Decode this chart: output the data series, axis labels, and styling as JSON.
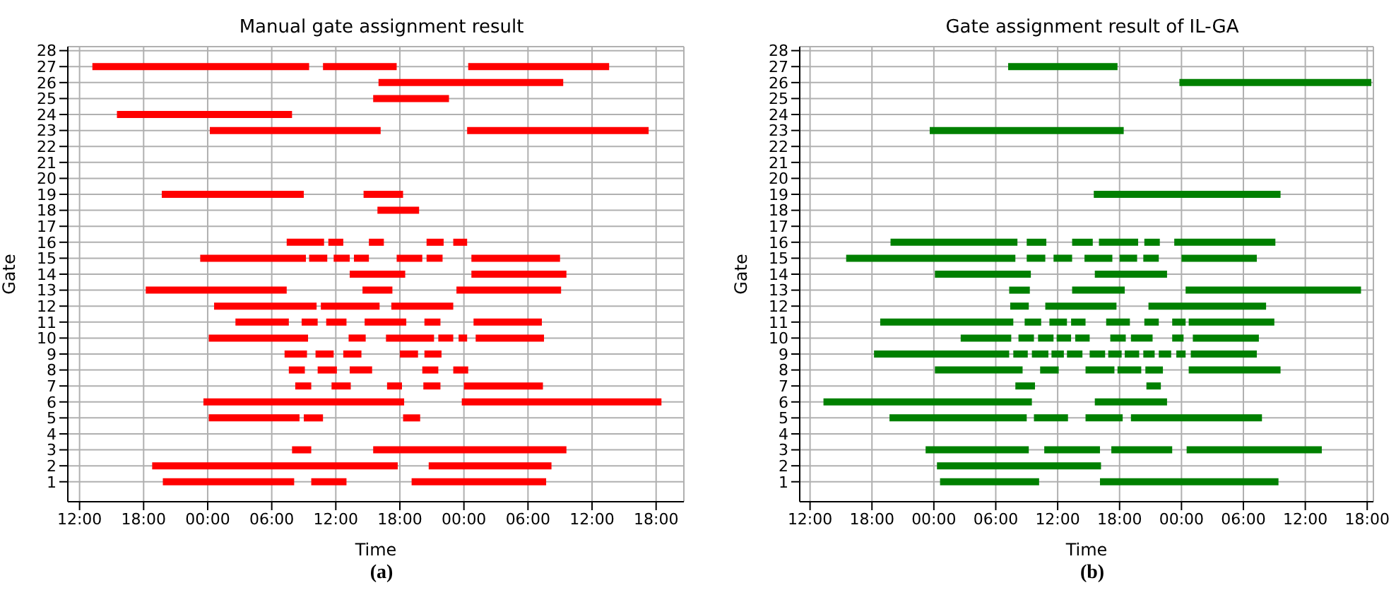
{
  "chart_data": [
    {
      "type": "line",
      "title": "Manual gate assignment result",
      "xlabel": "Time",
      "ylabel": "Gate",
      "annotations": [
        "(a)"
      ],
      "grid": true,
      "color": "#ff0000",
      "xlim": [
        "--01-01T10:54",
        "--01-03T20:36"
      ],
      "ylim": [
        -0.25,
        28.25
      ],
      "xticks": [
        {
          "value": "--01-01T12:00",
          "label": "12:00"
        },
        {
          "value": "--01-01T18:00",
          "label": "18:00"
        },
        {
          "value": "--01-02T00:00",
          "label": "00:00"
        },
        {
          "value": "--01-02T06:00",
          "label": "06:00"
        },
        {
          "value": "--01-02T12:00",
          "label": "12:00"
        },
        {
          "value": "--01-02T18:00",
          "label": "18:00"
        },
        {
          "value": "--01-03T00:00",
          "label": "00:00"
        },
        {
          "value": "--01-03T06:00",
          "label": "06:00"
        },
        {
          "value": "--01-03T12:00",
          "label": "12:00"
        },
        {
          "value": "--01-03T18:00",
          "label": "18:00"
        }
      ],
      "yticks": [
        1,
        2,
        3,
        4,
        5,
        6,
        7,
        8,
        9,
        10,
        11,
        12,
        13,
        14,
        15,
        16,
        17,
        18,
        19,
        20,
        21,
        22,
        23,
        24,
        25,
        26,
        27,
        28
      ],
      "series": [
        {
          "x": [
            "--01-01T13:12",
            "--01-02T09:30"
          ],
          "values": [
            27,
            27
          ]
        },
        {
          "x": [
            "--01-02T10:48",
            "--01-02T17:42"
          ],
          "values": [
            27,
            27
          ]
        },
        {
          "x": [
            "--01-03T00:24",
            "--01-03T13:36"
          ],
          "values": [
            27,
            27
          ]
        },
        {
          "x": [
            "--01-02T16:00",
            "--01-03T09:18"
          ],
          "values": [
            26,
            26
          ]
        },
        {
          "x": [
            "--01-02T15:30",
            "--01-02T22:36"
          ],
          "values": [
            25,
            25
          ]
        },
        {
          "x": [
            "--01-01T15:30",
            "--01-02T07:54"
          ],
          "values": [
            24,
            24
          ]
        },
        {
          "x": [
            "--01-02T00:12",
            "--01-02T16:12"
          ],
          "values": [
            23,
            23
          ]
        },
        {
          "x": [
            "--01-03T00:18",
            "--01-03T17:18"
          ],
          "values": [
            23,
            23
          ]
        },
        {
          "x": [
            "--01-01T19:42",
            "--01-02T09:00"
          ],
          "values": [
            19,
            19
          ]
        },
        {
          "x": [
            "--01-02T14:36",
            "--01-02T18:18"
          ],
          "values": [
            19,
            19
          ]
        },
        {
          "x": [
            "--01-02T15:54",
            "--01-02T19:48"
          ],
          "values": [
            18,
            18
          ]
        },
        {
          "x": [
            "--01-02T07:24",
            "--01-02T10:54"
          ],
          "values": [
            16,
            16
          ]
        },
        {
          "x": [
            "--01-02T11:18",
            "--01-02T12:42"
          ],
          "values": [
            16,
            16
          ]
        },
        {
          "x": [
            "--01-02T15:06",
            "--01-02T16:30"
          ],
          "values": [
            16,
            16
          ]
        },
        {
          "x": [
            "--01-02T20:30",
            "--01-02T22:06"
          ],
          "values": [
            16,
            16
          ]
        },
        {
          "x": [
            "--01-02T23:00",
            "--01-03T00:18"
          ],
          "values": [
            16,
            16
          ]
        },
        {
          "x": [
            "--01-01T23:18",
            "--01-02T09:12"
          ],
          "values": [
            15,
            15
          ]
        },
        {
          "x": [
            "--01-02T09:30",
            "--01-02T11:12"
          ],
          "values": [
            15,
            15
          ]
        },
        {
          "x": [
            "--01-02T11:48",
            "--01-02T13:18"
          ],
          "values": [
            15,
            15
          ]
        },
        {
          "x": [
            "--01-02T13:42",
            "--01-02T15:06"
          ],
          "values": [
            15,
            15
          ]
        },
        {
          "x": [
            "--01-02T17:42",
            "--01-02T20:06"
          ],
          "values": [
            15,
            15
          ]
        },
        {
          "x": [
            "--01-02T20:30",
            "--01-02T22:00"
          ],
          "values": [
            15,
            15
          ]
        },
        {
          "x": [
            "--01-03T00:42",
            "--01-03T09:00"
          ],
          "values": [
            15,
            15
          ]
        },
        {
          "x": [
            "--01-02T13:18",
            "--01-02T18:30"
          ],
          "values": [
            14,
            14
          ]
        },
        {
          "x": [
            "--01-03T00:42",
            "--01-03T09:36"
          ],
          "values": [
            14,
            14
          ]
        },
        {
          "x": [
            "--01-01T18:12",
            "--01-02T07:24"
          ],
          "values": [
            13,
            13
          ]
        },
        {
          "x": [
            "--01-02T14:30",
            "--01-02T17:18"
          ],
          "values": [
            13,
            13
          ]
        },
        {
          "x": [
            "--01-02T23:18",
            "--01-03T09:06"
          ],
          "values": [
            13,
            13
          ]
        },
        {
          "x": [
            "--01-02T00:36",
            "--01-02T10:12"
          ],
          "values": [
            12,
            12
          ]
        },
        {
          "x": [
            "--01-02T10:36",
            "--01-02T16:06"
          ],
          "values": [
            12,
            12
          ]
        },
        {
          "x": [
            "--01-02T17:12",
            "--01-02T23:00"
          ],
          "values": [
            12,
            12
          ]
        },
        {
          "x": [
            "--01-02T02:36",
            "--01-02T07:36"
          ],
          "values": [
            11,
            11
          ]
        },
        {
          "x": [
            "--01-02T08:48",
            "--01-02T10:18"
          ],
          "values": [
            11,
            11
          ]
        },
        {
          "x": [
            "--01-02T11:06",
            "--01-02T13:00"
          ],
          "values": [
            11,
            11
          ]
        },
        {
          "x": [
            "--01-02T14:42",
            "--01-02T18:36"
          ],
          "values": [
            11,
            11
          ]
        },
        {
          "x": [
            "--01-02T20:18",
            "--01-02T21:48"
          ],
          "values": [
            11,
            11
          ]
        },
        {
          "x": [
            "--01-03T00:54",
            "--01-03T07:18"
          ],
          "values": [
            11,
            11
          ]
        },
        {
          "x": [
            "--01-02T00:06",
            "--01-02T09:24"
          ],
          "values": [
            10,
            10
          ]
        },
        {
          "x": [
            "--01-02T13:12",
            "--01-02T14:48"
          ],
          "values": [
            10,
            10
          ]
        },
        {
          "x": [
            "--01-02T16:42",
            "--01-02T21:12"
          ],
          "values": [
            10,
            10
          ]
        },
        {
          "x": [
            "--01-02T21:36",
            "--01-02T23:00"
          ],
          "values": [
            10,
            10
          ]
        },
        {
          "x": [
            "--01-02T23:30",
            "--01-03T00:18"
          ],
          "values": [
            10,
            10
          ]
        },
        {
          "x": [
            "--01-03T01:06",
            "--01-03T07:30"
          ],
          "values": [
            10,
            10
          ]
        },
        {
          "x": [
            "--01-02T07:12",
            "--01-02T09:18"
          ],
          "values": [
            9,
            9
          ]
        },
        {
          "x": [
            "--01-02T10:06",
            "--01-02T11:48"
          ],
          "values": [
            9,
            9
          ]
        },
        {
          "x": [
            "--01-02T12:42",
            "--01-02T14:24"
          ],
          "values": [
            9,
            9
          ]
        },
        {
          "x": [
            "--01-02T18:00",
            "--01-02T19:42"
          ],
          "values": [
            9,
            9
          ]
        },
        {
          "x": [
            "--01-02T20:18",
            "--01-02T21:54"
          ],
          "values": [
            9,
            9
          ]
        },
        {
          "x": [
            "--01-02T07:36",
            "--01-02T09:06"
          ],
          "values": [
            8,
            8
          ]
        },
        {
          "x": [
            "--01-02T10:18",
            "--01-02T12:06"
          ],
          "values": [
            8,
            8
          ]
        },
        {
          "x": [
            "--01-02T13:18",
            "--01-02T15:24"
          ],
          "values": [
            8,
            8
          ]
        },
        {
          "x": [
            "--01-02T20:06",
            "--01-02T21:36"
          ],
          "values": [
            8,
            8
          ]
        },
        {
          "x": [
            "--01-02T23:00",
            "--01-03T00:24"
          ],
          "values": [
            8,
            8
          ]
        },
        {
          "x": [
            "--01-02T08:12",
            "--01-02T09:42"
          ],
          "values": [
            7,
            7
          ]
        },
        {
          "x": [
            "--01-02T11:36",
            "--01-02T13:24"
          ],
          "values": [
            7,
            7
          ]
        },
        {
          "x": [
            "--01-02T16:48",
            "--01-02T18:12"
          ],
          "values": [
            7,
            7
          ]
        },
        {
          "x": [
            "--01-02T20:12",
            "--01-02T21:48"
          ],
          "values": [
            7,
            7
          ]
        },
        {
          "x": [
            "--01-03T00:00",
            "--01-03T07:24"
          ],
          "values": [
            7,
            7
          ]
        },
        {
          "x": [
            "--01-01T23:36",
            "--01-02T18:24"
          ],
          "values": [
            6,
            6
          ]
        },
        {
          "x": [
            "--01-02T23:48",
            "--01-03T18:30"
          ],
          "values": [
            6,
            6
          ]
        },
        {
          "x": [
            "--01-02T00:06",
            "--01-02T08:36"
          ],
          "values": [
            5,
            5
          ]
        },
        {
          "x": [
            "--01-02T09:00",
            "--01-02T10:48"
          ],
          "values": [
            5,
            5
          ]
        },
        {
          "x": [
            "--01-02T18:18",
            "--01-02T19:54"
          ],
          "values": [
            5,
            5
          ]
        },
        {
          "x": [
            "--01-02T07:54",
            "--01-02T09:42"
          ],
          "values": [
            3,
            3
          ]
        },
        {
          "x": [
            "--01-02T15:30",
            "--01-03T09:36"
          ],
          "values": [
            3,
            3
          ]
        },
        {
          "x": [
            "--01-01T18:48",
            "--01-02T17:48"
          ],
          "values": [
            2,
            2
          ]
        },
        {
          "x": [
            "--01-02T20:42",
            "--01-03T08:12"
          ],
          "values": [
            2,
            2
          ]
        },
        {
          "x": [
            "--01-01T19:48",
            "--01-02T08:06"
          ],
          "values": [
            1,
            1
          ]
        },
        {
          "x": [
            "--01-02T09:42",
            "--01-02T13:00"
          ],
          "values": [
            1,
            1
          ]
        },
        {
          "x": [
            "--01-02T19:06",
            "--01-03T07:42"
          ],
          "values": [
            1,
            1
          ]
        }
      ]
    },
    {
      "type": "line",
      "title": "Gate assignment result of IL-GA",
      "xlabel": "Time",
      "ylabel": "Gate",
      "annotations": [
        "(b)"
      ],
      "grid": true,
      "color": "#008000",
      "xlim": [
        "--01-01T11:00",
        "--01-03T18:36"
      ],
      "ylim": [
        -0.25,
        28.25
      ],
      "xticks": [
        {
          "value": "--01-01T12:00",
          "label": "12:00"
        },
        {
          "value": "--01-01T18:00",
          "label": "18:00"
        },
        {
          "value": "--01-02T00:00",
          "label": "00:00"
        },
        {
          "value": "--01-02T06:00",
          "label": "06:00"
        },
        {
          "value": "--01-02T12:00",
          "label": "12:00"
        },
        {
          "value": "--01-02T18:00",
          "label": "18:00"
        },
        {
          "value": "--01-03T00:00",
          "label": "00:00"
        },
        {
          "value": "--01-03T06:00",
          "label": "06:00"
        },
        {
          "value": "--01-03T12:00",
          "label": "12:00"
        },
        {
          "value": "--01-03T18:00",
          "label": "18:00"
        }
      ],
      "yticks": [
        1,
        2,
        3,
        4,
        5,
        6,
        7,
        8,
        9,
        10,
        11,
        12,
        13,
        14,
        15,
        16,
        17,
        18,
        19,
        20,
        21,
        22,
        23,
        24,
        25,
        26,
        27,
        28
      ],
      "series": [
        {
          "x": [
            "--01-02T07:12",
            "--01-02T17:48"
          ],
          "values": [
            27,
            27
          ]
        },
        {
          "x": [
            "--01-02T23:48",
            "--01-03T18:24"
          ],
          "values": [
            26,
            26
          ]
        },
        {
          "x": [
            "--01-01T23:36",
            "--01-02T18:24"
          ],
          "values": [
            23,
            23
          ]
        },
        {
          "x": [
            "--01-02T15:30",
            "--01-03T09:36"
          ],
          "values": [
            19,
            19
          ]
        },
        {
          "x": [
            "--01-01T19:48",
            "--01-02T08:06"
          ],
          "values": [
            16,
            16
          ]
        },
        {
          "x": [
            "--01-02T09:00",
            "--01-02T10:54"
          ],
          "values": [
            16,
            16
          ]
        },
        {
          "x": [
            "--01-02T13:24",
            "--01-02T15:24"
          ],
          "values": [
            16,
            16
          ]
        },
        {
          "x": [
            "--01-02T16:00",
            "--01-02T19:48"
          ],
          "values": [
            16,
            16
          ]
        },
        {
          "x": [
            "--01-02T20:24",
            "--01-02T21:54"
          ],
          "values": [
            16,
            16
          ]
        },
        {
          "x": [
            "--01-02T23:18",
            "--01-03T09:06"
          ],
          "values": [
            16,
            16
          ]
        },
        {
          "x": [
            "--01-01T15:30",
            "--01-02T07:54"
          ],
          "values": [
            15,
            15
          ]
        },
        {
          "x": [
            "--01-02T09:00",
            "--01-02T10:48"
          ],
          "values": [
            15,
            15
          ]
        },
        {
          "x": [
            "--01-02T11:36",
            "--01-02T13:24"
          ],
          "values": [
            15,
            15
          ]
        },
        {
          "x": [
            "--01-02T14:36",
            "--01-02T17:18"
          ],
          "values": [
            15,
            15
          ]
        },
        {
          "x": [
            "--01-02T18:00",
            "--01-02T19:42"
          ],
          "values": [
            15,
            15
          ]
        },
        {
          "x": [
            "--01-02T20:18",
            "--01-02T21:48"
          ],
          "values": [
            15,
            15
          ]
        },
        {
          "x": [
            "--01-03T00:00",
            "--01-03T07:18"
          ],
          "values": [
            15,
            15
          ]
        },
        {
          "x": [
            "--01-02T00:06",
            "--01-02T09:24"
          ],
          "values": [
            14,
            14
          ]
        },
        {
          "x": [
            "--01-02T15:36",
            "--01-02T22:36"
          ],
          "values": [
            14,
            14
          ]
        },
        {
          "x": [
            "--01-02T07:18",
            "--01-02T09:18"
          ],
          "values": [
            13,
            13
          ]
        },
        {
          "x": [
            "--01-02T13:24",
            "--01-02T18:30"
          ],
          "values": [
            13,
            13
          ]
        },
        {
          "x": [
            "--01-03T00:24",
            "--01-03T17:24"
          ],
          "values": [
            13,
            13
          ]
        },
        {
          "x": [
            "--01-02T07:24",
            "--01-02T09:12"
          ],
          "values": [
            12,
            12
          ]
        },
        {
          "x": [
            "--01-02T10:48",
            "--01-02T17:42"
          ],
          "values": [
            12,
            12
          ]
        },
        {
          "x": [
            "--01-02T20:48",
            "--01-03T08:12"
          ],
          "values": [
            12,
            12
          ]
        },
        {
          "x": [
            "--01-01T18:48",
            "--01-02T07:42"
          ],
          "values": [
            11,
            11
          ]
        },
        {
          "x": [
            "--01-02T08:48",
            "--01-02T10:24"
          ],
          "values": [
            11,
            11
          ]
        },
        {
          "x": [
            "--01-02T11:12",
            "--01-02T12:54"
          ],
          "values": [
            11,
            11
          ]
        },
        {
          "x": [
            "--01-02T13:18",
            "--01-02T14:42"
          ],
          "values": [
            11,
            11
          ]
        },
        {
          "x": [
            "--01-02T16:42",
            "--01-02T19:00"
          ],
          "values": [
            11,
            11
          ]
        },
        {
          "x": [
            "--01-02T20:24",
            "--01-02T21:48"
          ],
          "values": [
            11,
            11
          ]
        },
        {
          "x": [
            "--01-02T23:06",
            "--01-03T00:24"
          ],
          "values": [
            11,
            11
          ]
        },
        {
          "x": [
            "--01-03T00:42",
            "--01-03T09:00"
          ],
          "values": [
            11,
            11
          ]
        },
        {
          "x": [
            "--01-02T02:36",
            "--01-02T07:30"
          ],
          "values": [
            10,
            10
          ]
        },
        {
          "x": [
            "--01-02T08:12",
            "--01-02T09:42"
          ],
          "values": [
            10,
            10
          ]
        },
        {
          "x": [
            "--01-02T10:06",
            "--01-02T11:36"
          ],
          "values": [
            10,
            10
          ]
        },
        {
          "x": [
            "--01-02T11:54",
            "--01-02T13:18"
          ],
          "values": [
            10,
            10
          ]
        },
        {
          "x": [
            "--01-02T13:42",
            "--01-02T15:06"
          ],
          "values": [
            10,
            10
          ]
        },
        {
          "x": [
            "--01-02T17:06",
            "--01-02T18:36"
          ],
          "values": [
            10,
            10
          ]
        },
        {
          "x": [
            "--01-02T19:06",
            "--01-02T21:12"
          ],
          "values": [
            10,
            10
          ]
        },
        {
          "x": [
            "--01-02T23:06",
            "--01-03T00:12"
          ],
          "values": [
            10,
            10
          ]
        },
        {
          "x": [
            "--01-03T01:06",
            "--01-03T07:30"
          ],
          "values": [
            10,
            10
          ]
        },
        {
          "x": [
            "--01-01T18:12",
            "--01-02T07:18"
          ],
          "values": [
            9,
            9
          ]
        },
        {
          "x": [
            "--01-02T07:42",
            "--01-02T09:06"
          ],
          "values": [
            9,
            9
          ]
        },
        {
          "x": [
            "--01-02T09:30",
            "--01-02T11:06"
          ],
          "values": [
            9,
            9
          ]
        },
        {
          "x": [
            "--01-02T11:24",
            "--01-02T12:36"
          ],
          "values": [
            9,
            9
          ]
        },
        {
          "x": [
            "--01-02T12:54",
            "--01-02T14:24"
          ],
          "values": [
            9,
            9
          ]
        },
        {
          "x": [
            "--01-02T15:06",
            "--01-02T16:36"
          ],
          "values": [
            9,
            9
          ]
        },
        {
          "x": [
            "--01-02T16:54",
            "--01-02T18:12"
          ],
          "values": [
            9,
            9
          ]
        },
        {
          "x": [
            "--01-02T18:30",
            "--01-02T19:54"
          ],
          "values": [
            9,
            9
          ]
        },
        {
          "x": [
            "--01-02T20:18",
            "--01-02T21:24"
          ],
          "values": [
            9,
            9
          ]
        },
        {
          "x": [
            "--01-02T21:48",
            "--01-02T23:00"
          ],
          "values": [
            9,
            9
          ]
        },
        {
          "x": [
            "--01-02T23:30",
            "--01-03T00:24"
          ],
          "values": [
            9,
            9
          ]
        },
        {
          "x": [
            "--01-03T00:54",
            "--01-03T07:18"
          ],
          "values": [
            9,
            9
          ]
        },
        {
          "x": [
            "--01-02T00:06",
            "--01-02T08:36"
          ],
          "values": [
            8,
            8
          ]
        },
        {
          "x": [
            "--01-02T10:18",
            "--01-02T12:06"
          ],
          "values": [
            8,
            8
          ]
        },
        {
          "x": [
            "--01-02T14:42",
            "--01-02T17:30"
          ],
          "values": [
            8,
            8
          ]
        },
        {
          "x": [
            "--01-02T17:48",
            "--01-02T20:06"
          ],
          "values": [
            8,
            8
          ]
        },
        {
          "x": [
            "--01-02T20:30",
            "--01-02T22:12"
          ],
          "values": [
            8,
            8
          ]
        },
        {
          "x": [
            "--01-03T00:42",
            "--01-03T09:36"
          ],
          "values": [
            8,
            8
          ]
        },
        {
          "x": [
            "--01-02T07:54",
            "--01-02T09:48"
          ],
          "values": [
            7,
            7
          ]
        },
        {
          "x": [
            "--01-02T20:36",
            "--01-02T22:00"
          ],
          "values": [
            7,
            7
          ]
        },
        {
          "x": [
            "--01-01T13:18",
            "--01-02T09:30"
          ],
          "values": [
            6,
            6
          ]
        },
        {
          "x": [
            "--01-02T15:36",
            "--01-02T22:36"
          ],
          "values": [
            6,
            6
          ]
        },
        {
          "x": [
            "--01-01T19:42",
            "--01-02T09:00"
          ],
          "values": [
            5,
            5
          ]
        },
        {
          "x": [
            "--01-02T09:42",
            "--01-02T13:00"
          ],
          "values": [
            5,
            5
          ]
        },
        {
          "x": [
            "--01-02T14:42",
            "--01-02T18:18"
          ],
          "values": [
            5,
            5
          ]
        },
        {
          "x": [
            "--01-02T19:06",
            "--01-03T07:48"
          ],
          "values": [
            5,
            5
          ]
        },
        {
          "x": [
            "--01-01T23:12",
            "--01-02T09:12"
          ],
          "values": [
            3,
            3
          ]
        },
        {
          "x": [
            "--01-02T10:42",
            "--01-02T16:06"
          ],
          "values": [
            3,
            3
          ]
        },
        {
          "x": [
            "--01-02T17:12",
            "--01-02T23:06"
          ],
          "values": [
            3,
            3
          ]
        },
        {
          "x": [
            "--01-03T00:30",
            "--01-03T13:36"
          ],
          "values": [
            3,
            3
          ]
        },
        {
          "x": [
            "--01-02T00:18",
            "--01-02T16:12"
          ],
          "values": [
            2,
            2
          ]
        },
        {
          "x": [
            "--01-02T00:36",
            "--01-02T10:12"
          ],
          "values": [
            1,
            1
          ]
        },
        {
          "x": [
            "--01-02T16:06",
            "--01-03T09:24"
          ],
          "values": [
            1,
            1
          ]
        }
      ]
    }
  ]
}
